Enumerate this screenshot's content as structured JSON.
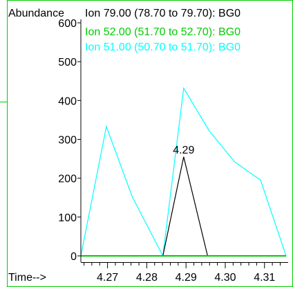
{
  "chart_data": {
    "type": "line",
    "ylabel": "Abundance",
    "xlabel": "Time-->",
    "ylim": [
      0,
      600
    ],
    "xlim": [
      4.2632,
      4.3155
    ],
    "y_ticks": [
      0,
      100,
      200,
      300,
      400,
      500,
      600
    ],
    "x_ticks": [
      4.27,
      4.28,
      4.29,
      4.3,
      4.31
    ],
    "x_tick_labels": [
      "4.27",
      "4.28",
      "4.29",
      "4.30",
      "4.31"
    ],
    "grid": false,
    "legend_position": "top",
    "series": [
      {
        "name": "Ion  79.00 (78.70 to 79.70): BG0",
        "color": "#000000",
        "x": [
          4.2632,
          4.2841,
          4.2894,
          4.2955,
          4.3155
        ],
        "y": [
          0,
          0,
          255,
          0,
          0
        ]
      },
      {
        "name": "Ion  52.00 (51.70 to 52.70): BG0",
        "color": "#00cc00",
        "x": [
          4.2632,
          4.3155
        ],
        "y": [
          0,
          0
        ]
      },
      {
        "name": "Ion  51.00 (50.70 to 51.70): BG0",
        "color": "#00ffff",
        "x": [
          4.2632,
          4.2697,
          4.2763,
          4.2841,
          4.2894,
          4.2959,
          4.3024,
          4.309,
          4.3155
        ],
        "y": [
          0,
          333,
          152,
          0,
          432,
          322,
          242,
          195,
          0
        ]
      }
    ],
    "annotations": [
      {
        "text": "4.29",
        "x": 4.2894,
        "y": 255
      }
    ]
  }
}
